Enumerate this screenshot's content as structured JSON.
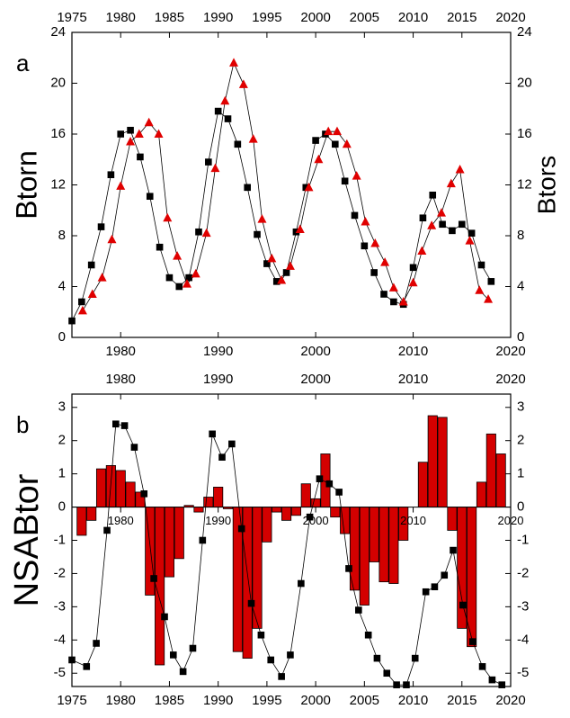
{
  "chart_data": [
    {
      "type": "line",
      "label": "a",
      "ylabel": "Btorn",
      "ylabel_color": "#000000",
      "y2label": "Btors",
      "y2label_color": "#e00000",
      "xlim": [
        1975,
        2020
      ],
      "xticks": [
        1980,
        1990,
        2000,
        2010,
        2020
      ],
      "xticks_top": [
        1975,
        1980,
        1985,
        1990,
        1995,
        2000,
        2005,
        2010,
        2015,
        2020
      ],
      "ylim": [
        0,
        24
      ],
      "yticks": [
        0,
        4,
        8,
        12,
        16,
        20,
        24
      ],
      "y2lim": [
        0,
        24
      ],
      "y2ticks": [
        0,
        4,
        8,
        12,
        16,
        20,
        24
      ],
      "series": [
        {
          "marker": "square",
          "color": "#000000",
          "x": [
            1975,
            1976,
            1977,
            1978,
            1979,
            1980,
            1981,
            1982,
            1983,
            1984,
            1985,
            1986,
            1987,
            1988,
            1989,
            1990,
            1991,
            1992,
            1993,
            1994,
            1995,
            1996,
            1997,
            1998,
            1999,
            2000,
            2001,
            2002,
            2003,
            2004,
            2005,
            2006,
            2007,
            2008,
            2009,
            2010,
            2011,
            2012,
            2013,
            2014,
            2015,
            2016,
            2017,
            2018
          ],
          "values": [
            1.3,
            2.8,
            5.7,
            8.7,
            12.8,
            16.0,
            16.3,
            14.2,
            11.1,
            7.1,
            4.7,
            4.0,
            4.7,
            8.3,
            13.8,
            17.8,
            17.2,
            15.2,
            11.8,
            8.1,
            5.8,
            4.4,
            5.1,
            8.3,
            11.8,
            15.5,
            16.0,
            15.2,
            12.3,
            9.6,
            7.2,
            5.1,
            3.4,
            2.8,
            2.6,
            5.5,
            9.4,
            11.2,
            8.9,
            8.4,
            8.9,
            8.2,
            5.7,
            4.4
          ]
        },
        {
          "marker": "triangle",
          "color": "#e00000",
          "axis": "y2",
          "x": [
            1976.1,
            1977.1,
            1978.1,
            1979.1,
            1980.0,
            1981.0,
            1981.9,
            1982.9,
            1983.9,
            1984.8,
            1985.8,
            1986.8,
            1987.7,
            1988.8,
            1989.7,
            1990.7,
            1991.6,
            1992.6,
            1993.6,
            1994.5,
            1995.5,
            1996.5,
            1997.4,
            1998.4,
            1999.3,
            2000.3,
            2001.3,
            2002.2,
            2003.2,
            2004.2,
            2005.1,
            2006.1,
            2007.1,
            2008.0,
            2009.0,
            2010.0,
            2010.9,
            2011.9,
            2012.9,
            2013.9,
            2014.8,
            2015.8,
            2016.8,
            2017.7
          ],
          "values": [
            2.1,
            3.4,
            4.7,
            7.7,
            11.9,
            15.4,
            16.0,
            16.9,
            16.0,
            9.4,
            6.4,
            4.2,
            5.0,
            8.2,
            13.3,
            18.6,
            21.6,
            19.9,
            15.6,
            9.3,
            6.2,
            4.5,
            5.6,
            8.5,
            11.8,
            14.0,
            16.2,
            16.2,
            15.2,
            12.7,
            9.1,
            7.4,
            5.9,
            3.9,
            2.8,
            4.3,
            6.8,
            8.8,
            9.8,
            12.1,
            13.2,
            7.6,
            3.7,
            3.0
          ]
        }
      ]
    },
    {
      "type": "bar",
      "label": "b",
      "ylabel": "NSABtor",
      "ylabel_color": "#e00000",
      "xlim": [
        1975,
        2020
      ],
      "xticks": [
        1975,
        1980,
        1985,
        1990,
        1995,
        2000,
        2005,
        2010,
        2015,
        2020
      ],
      "xticks_top": [
        1980,
        1990,
        2000,
        2010,
        2020
      ],
      "xticks_zero": [
        1980,
        1990,
        2000,
        2010,
        2020
      ],
      "ylim": [
        -5.4,
        3.4
      ],
      "yticks": [
        -5,
        -4,
        -3,
        -2,
        -1,
        0,
        1,
        2,
        3
      ],
      "y2lim": [
        -5.4,
        3.4
      ],
      "y2ticks": [
        -5,
        -4,
        -3,
        -2,
        -1,
        0,
        1,
        2,
        3
      ],
      "series": [
        {
          "type": "bar",
          "color": "#d40000",
          "x": [
            1976,
            1977,
            1978,
            1979,
            1980,
            1981,
            1982,
            1983,
            1984,
            1985,
            1986,
            1987,
            1988,
            1989,
            1990,
            1991,
            1992,
            1993,
            1994,
            1995,
            1996,
            1997,
            1998,
            1999,
            2000,
            2001,
            2002,
            2003,
            2004,
            2005,
            2006,
            2007,
            2008,
            2009,
            2010,
            2011,
            2012,
            2013,
            2014,
            2015,
            2016,
            2017,
            2018,
            2019
          ],
          "values": [
            -0.85,
            -0.4,
            1.15,
            1.25,
            1.1,
            0.75,
            0.45,
            -2.65,
            -4.75,
            -2.1,
            -1.55,
            0.05,
            -0.15,
            0.3,
            0.6,
            -0.05,
            -4.35,
            -4.55,
            -3.65,
            -1.05,
            -0.15,
            -0.4,
            -0.25,
            0.7,
            0.25,
            1.6,
            -0.3,
            -0.8,
            -2.5,
            -2.95,
            -1.65,
            -2.25,
            -2.3,
            -1.0,
            0.0,
            1.35,
            2.75,
            2.7,
            -0.7,
            -3.65,
            -4.2,
            0.75,
            2.2,
            1.6
          ]
        },
        {
          "type": "line",
          "marker": "square",
          "color": "#000000",
          "x": [
            1975,
            1976.5,
            1977.5,
            1978.6,
            1979.5,
            1980.4,
            1981.4,
            1982.4,
            1983.4,
            1984.5,
            1985.4,
            1986.4,
            1987.4,
            1988.4,
            1989.4,
            1990.4,
            1991.4,
            1992.4,
            1993.4,
            1994.4,
            1995.4,
            1996.5,
            1997.4,
            1998.5,
            1999.4,
            2000.4,
            2001.4,
            2002.4,
            2003.4,
            2004.4,
            2005.4,
            2006.3,
            2007.3,
            2008.3,
            2009.3,
            2010.2,
            2011.3,
            2012.2,
            2013.2,
            2014.1,
            2015.1,
            2016.1,
            2017.1,
            2018.1,
            2019.1
          ],
          "values": [
            -4.6,
            -4.8,
            -4.1,
            -0.7,
            2.5,
            2.45,
            1.8,
            0.4,
            -2.15,
            -3.3,
            -4.45,
            -4.95,
            -4.25,
            -1.0,
            2.2,
            1.5,
            1.9,
            -0.65,
            -2.9,
            -3.85,
            -4.6,
            -5.1,
            -4.45,
            -2.3,
            -0.3,
            0.85,
            0.7,
            0.45,
            -1.85,
            -3.1,
            -3.85,
            -4.55,
            -5.0,
            -5.35,
            -5.35,
            -4.55,
            -2.55,
            -2.4,
            -2.05,
            -1.3,
            -2.95,
            -4.05,
            -4.8,
            -5.2,
            -5.35
          ]
        }
      ]
    }
  ]
}
